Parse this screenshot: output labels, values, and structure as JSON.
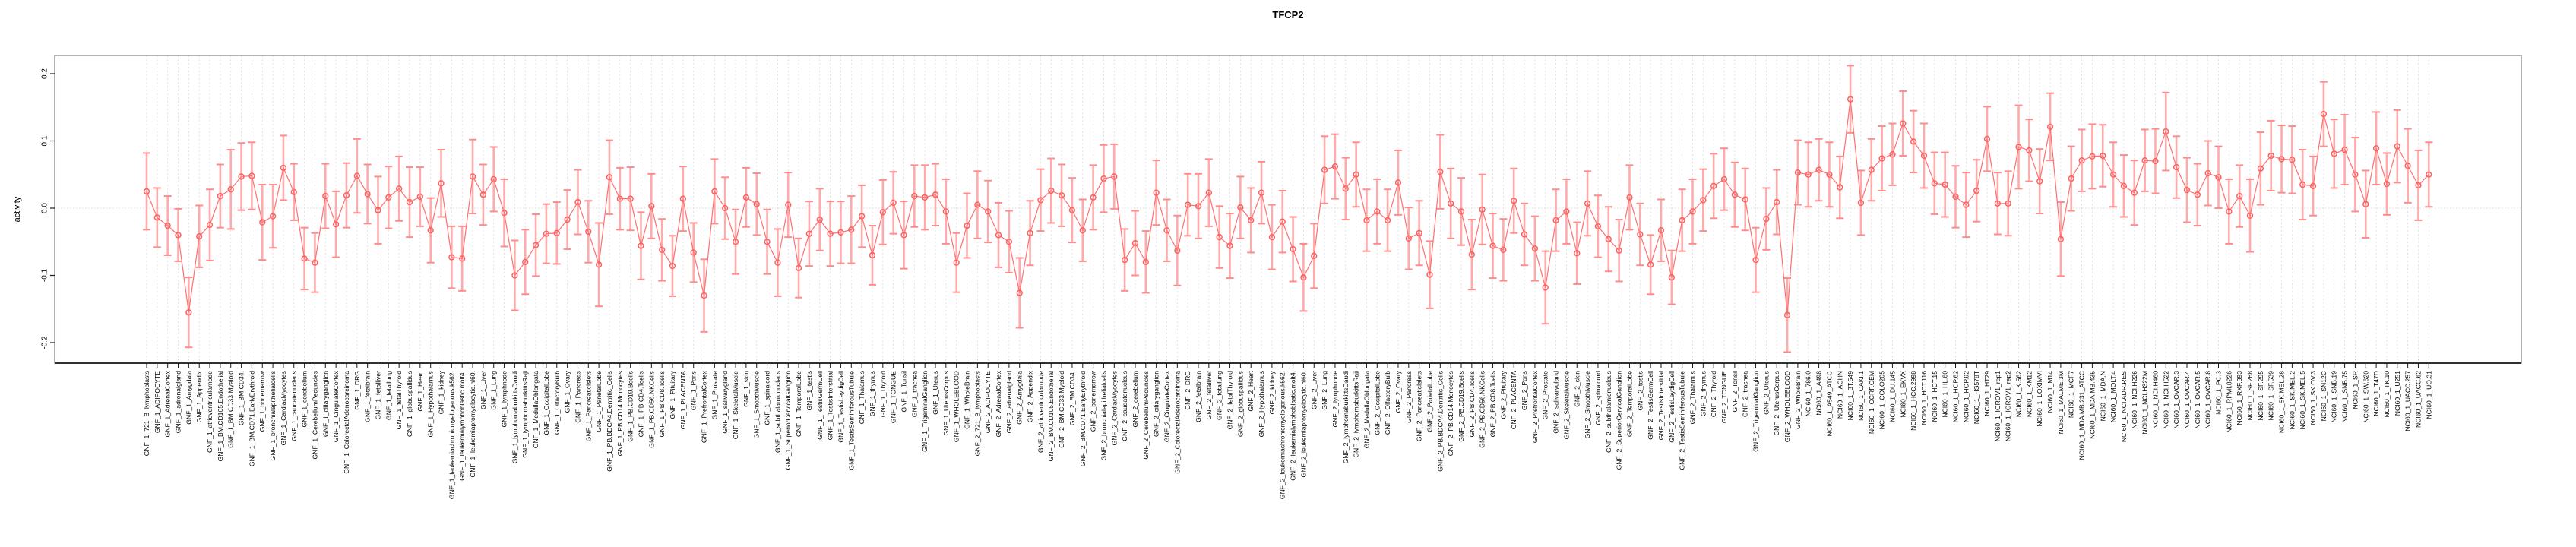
{
  "chart_data": {
    "type": "scatter",
    "title": "TFCP2",
    "xlabel": "",
    "ylabel": "activity",
    "ylim": [
      -0.23,
      0.23
    ],
    "y_ticks": [
      0.2,
      0.1,
      0.0,
      -0.1,
      -0.2
    ],
    "y_tick_labels": [
      "0.2",
      "0.1",
      "0.0",
      "-0.1",
      "-0.2"
    ],
    "grid": "vertical-dashed-per-category, dotted-zero-line",
    "legend": "none",
    "marker": "open-circle-with-errorbar",
    "colors": {
      "point": "#FF5F5F",
      "line": "#FF7070",
      "whisker": "#FFABAB",
      "whisker_cap": "#FF8C8C",
      "grid": "#DCDCDC",
      "zero_line": "#E3E3E3",
      "panel_border": "#9E9E9E",
      "axis": "#1A1A1A",
      "label_text": "#000000"
    },
    "groups": [
      {
        "prefix": "GNF_1_",
        "names": [
          "721_B_lymphoblasts",
          "ADIPOCYTE",
          "AdrenalCortex",
          "adrenalgland",
          "Amygdala",
          "Appendix",
          "atrioventricularnode",
          "BM.CD105.Endothelial",
          "BM.CD33.Myeloid",
          "BM.CD34.",
          "BM.CD71.EarlyErythroid",
          "bonemarrow",
          "bronchialepithelialcells",
          "CardiacMyocytes",
          "caudatenucleus",
          "cerebellum",
          "CerebellumPeduncles",
          "ciliaryganglion",
          "CingulateCortex",
          "ColorectalAdenocarcinoma",
          "DRG",
          "fetalbrain",
          "fetalliver",
          "fetallung",
          "fetalThyroid",
          "globuspallidus",
          "Heart",
          "Hypothalamus",
          "kidney",
          "leukemiachronicmyelogenous.k562.",
          "leukemialymphoblastic.molt4.",
          "leukemiapromyelocytic.hl60.",
          "Liver",
          "Lung",
          "lymphnode",
          "lymphomaburkittsDaudi",
          "lymphomaburkittsRaji",
          "MedullaOblongata",
          "OccipitalLobe",
          "OlfactoryBulb",
          "Ovary",
          "Pancreas",
          "PancreaticIslets",
          "ParietalLobe",
          "PB.BDCA4.Dentritic_Cells",
          "PB.CD14.Monocytes",
          "PB.CD19.Bcells",
          "PB.CD4.Tcells",
          "PB.CD56.NKCells",
          "PB.CD8.Tcells",
          "Pituitary",
          "PLACENTA",
          "Pons",
          "PrefrontalCortex",
          "Prostate",
          "salivarygland",
          "SkeletalMuscle",
          "skin",
          "SmoothMuscle",
          "spinalcord",
          "subthalamicnucleus",
          "SuperiorCervicalGanglion",
          "TemporalLobe",
          "testis",
          "TestisGermCell",
          "TestisInterstitial",
          "TestisLeydigCell",
          "TestisSeminiferousTubule",
          "Thalamus",
          "thymus",
          "Thyroid",
          "TONGUE",
          "Tonsil",
          "trachea",
          "TrigeminalGanglion",
          "Uterus",
          "UterusCorpus",
          "WHOLEBLOOD",
          "WholeBrain"
        ]
      },
      {
        "prefix": "GNF_2_",
        "names": [
          "721_B_lymphoblasts",
          "ADIPOCYTE",
          "AdrenalCortex",
          "adrenalgland",
          "Amygdala",
          "Appendix",
          "atrioventricularnode",
          "BM.CD105.Endothelial",
          "BM.CD33.Myeloid",
          "BM.CD34.",
          "BM.CD71.EarlyErythroid",
          "bonemarrow",
          "bronchialepithelialcells",
          "CardiacMyocytes",
          "caudatenucleus",
          "cerebellum",
          "CerebellumPeduncles",
          "ciliaryganglion",
          "CingulateCortex",
          "ColorectalAdenocarcinoma",
          "DRG",
          "fetalbrain",
          "fetalliver",
          "fetallung",
          "fetalThyroid",
          "globuspallidus",
          "Heart",
          "Hypothalamus",
          "kidney",
          "leukemiachronicmyelogenous.k562.",
          "leukemialymphoblastic.molt4.",
          "leukemiapromyelocytic.hl60.",
          "Liver",
          "Lung",
          "lymphnode",
          "lymphomaburkittsDaudi",
          "lymphomaburkittsRaji",
          "MedullaOblongata",
          "OccipitalLobe",
          "OlfactoryBulb",
          "Ovary",
          "Pancreas",
          "PancreaticIslets",
          "ParietalLobe",
          "PB.BDCA4.Dentritic_Cells",
          "PB.CD14.Monocytes",
          "PB.CD19.Bcells",
          "PB.CD4.Tcells",
          "PB.CD56.NKCells",
          "PB.CD8.Tcells",
          "Pituitary",
          "PLACENTA",
          "Pons",
          "PrefrontalCortex",
          "Prostate",
          "salivarygland",
          "SkeletalMuscle",
          "skin",
          "SmoothMuscle",
          "spinalcord",
          "subthalamicnucleus",
          "SuperiorCervicalGanglion",
          "TemporalLobe",
          "testis",
          "TestisGermCell",
          "TestisInterstitial",
          "TestisLeydigCell",
          "TestisSeminiferousTubule",
          "Thalamus",
          "thymus",
          "Thyroid",
          "TONGUE",
          "Tonsil",
          "trachea",
          "TrigeminalGanglion",
          "Uterus",
          "UterusCorpus",
          "WHOLEBLOOD",
          "WholeBrain"
        ]
      },
      {
        "prefix": "NCI60_1_",
        "names": [
          "786.0",
          "A498",
          "A549_ATCC",
          "ACHN",
          "BT.549",
          "CAKI.1",
          "CCRF.CEM",
          "COLO205",
          "DU.145",
          "EKVX",
          "HCC.2998",
          "HCT.116",
          "HCT.15",
          "HL.60",
          "HOP.62",
          "HOP.92",
          "HS578T",
          "HT29",
          "IGROV1_rep1",
          "IGROV1_rep2",
          "K.562",
          "KM12",
          "LOXIMVI",
          "M14",
          "MALME.3M",
          "MCF7",
          "MDA.MB.231_ATCC",
          "MDA.MB.435",
          "MDA.N",
          "MOLT.4",
          "NCI.ADR.RES",
          "NCI.H226",
          "NCI.H322M",
          "NCI.H460",
          "NCI.H522",
          "OVCAR.3",
          "OVCAR.4",
          "OVCAR.5",
          "OVCAR.8",
          "PC.3",
          "RPMI.8226",
          "RXF.393",
          "SF.268",
          "SF.295",
          "SF.539",
          "SK.MEL.28",
          "SK.MEL.2",
          "SK.MEL.5",
          "SK.OV.3",
          "SN12C",
          "SNB.19",
          "SNB.75",
          "SR",
          "SW.620",
          "T47D",
          "TK.10",
          "U251",
          "UACC.257",
          "UACC.62",
          "UO.31"
        ]
      }
    ],
    "points": [
      [
        0.025,
        0.057
      ],
      [
        -0.014,
        0.044
      ],
      [
        -0.026,
        0.044
      ],
      [
        -0.04,
        0.039
      ],
      [
        -0.155,
        0.052
      ],
      [
        -0.042,
        0.046
      ],
      [
        -0.025,
        0.053
      ],
      [
        0.018,
        0.047
      ],
      [
        0.028,
        0.059
      ],
      [
        0.047,
        0.05
      ],
      [
        0.048,
        0.05
      ],
      [
        -0.021,
        0.056
      ],
      [
        -0.012,
        0.047
      ],
      [
        0.06,
        0.048
      ],
      [
        0.024,
        0.042
      ],
      [
        -0.075,
        0.046
      ],
      [
        -0.081,
        0.044
      ],
      [
        0.018,
        0.048
      ],
      [
        -0.024,
        0.049
      ],
      [
        0.019,
        0.048
      ],
      [
        0.048,
        0.055
      ],
      [
        0.021,
        0.044
      ],
      [
        -0.003,
        0.05
      ],
      [
        0.016,
        0.046
      ],
      [
        0.029,
        0.048
      ],
      [
        0.009,
        0.052
      ],
      [
        0.017,
        0.044
      ],
      [
        -0.033,
        0.048
      ],
      [
        0.037,
        0.05
      ],
      [
        -0.073,
        0.046
      ],
      [
        -0.075,
        0.048
      ],
      [
        0.047,
        0.055
      ],
      [
        0.02,
        0.045
      ],
      [
        0.043,
        0.048
      ],
      [
        -0.007,
        0.05
      ],
      [
        -0.1,
        0.052
      ],
      [
        -0.08,
        0.048
      ],
      [
        -0.055,
        0.046
      ],
      [
        -0.038,
        0.044
      ],
      [
        -0.037,
        0.046
      ],
      [
        -0.017,
        0.044
      ],
      [
        0.009,
        0.048
      ],
      [
        -0.035,
        0.046
      ],
      [
        -0.084,
        0.062
      ],
      [
        0.046,
        0.055
      ],
      [
        0.014,
        0.046
      ],
      [
        0.014,
        0.047
      ],
      [
        -0.056,
        0.05
      ],
      [
        0.003,
        0.048
      ],
      [
        -0.062,
        0.046
      ],
      [
        -0.086,
        0.045
      ],
      [
        0.014,
        0.048
      ],
      [
        -0.066,
        0.044
      ],
      [
        -0.13,
        0.054
      ],
      [
        0.025,
        0.048
      ],
      [
        0.0,
        0.046
      ],
      [
        -0.05,
        0.048
      ],
      [
        0.016,
        0.044
      ],
      [
        0.006,
        0.046
      ],
      [
        -0.05,
        0.048
      ],
      [
        -0.081,
        0.05
      ],
      [
        0.005,
        0.048
      ],
      [
        -0.089,
        0.044
      ],
      [
        -0.038,
        0.048
      ],
      [
        -0.017,
        0.046
      ],
      [
        -0.038,
        0.048
      ],
      [
        -0.036,
        0.046
      ],
      [
        -0.032,
        0.05
      ],
      [
        -0.012,
        0.046
      ],
      [
        -0.07,
        0.044
      ],
      [
        -0.006,
        0.048
      ],
      [
        0.008,
        0.046
      ],
      [
        -0.04,
        0.05
      ],
      [
        0.018,
        0.046
      ],
      [
        0.016,
        0.048
      ],
      [
        0.02,
        0.046
      ],
      [
        -0.005,
        0.048
      ],
      [
        -0.081,
        0.044
      ],
      [
        -0.026,
        0.048
      ],
      [
        0.005,
        0.05
      ],
      [
        -0.005,
        0.046
      ],
      [
        -0.04,
        0.048
      ],
      [
        -0.05,
        0.046
      ],
      [
        -0.126,
        0.052
      ],
      [
        -0.037,
        0.048
      ],
      [
        0.012,
        0.046
      ],
      [
        0.026,
        0.048
      ],
      [
        0.019,
        0.046
      ],
      [
        -0.003,
        0.048
      ],
      [
        -0.033,
        0.046
      ],
      [
        0.016,
        0.048
      ],
      [
        0.044,
        0.05
      ],
      [
        0.047,
        0.048
      ],
      [
        -0.077,
        0.046
      ],
      [
        -0.052,
        0.048
      ],
      [
        -0.08,
        0.046
      ],
      [
        0.023,
        0.048
      ],
      [
        -0.033,
        0.046
      ],
      [
        -0.063,
        0.052
      ],
      [
        0.005,
        0.046
      ],
      [
        0.003,
        0.048
      ],
      [
        0.023,
        0.05
      ],
      [
        -0.043,
        0.046
      ],
      [
        -0.056,
        0.048
      ],
      [
        0.001,
        0.046
      ],
      [
        -0.018,
        0.048
      ],
      [
        0.023,
        0.046
      ],
      [
        -0.043,
        0.048
      ],
      [
        -0.02,
        0.046
      ],
      [
        -0.061,
        0.048
      ],
      [
        -0.103,
        0.05
      ],
      [
        -0.071,
        0.048
      ],
      [
        0.057,
        0.05
      ],
      [
        0.062,
        0.048
      ],
      [
        0.029,
        0.046
      ],
      [
        0.05,
        0.048
      ],
      [
        -0.018,
        0.046
      ],
      [
        -0.005,
        0.048
      ],
      [
        -0.018,
        0.046
      ],
      [
        0.038,
        0.048
      ],
      [
        -0.045,
        0.046
      ],
      [
        -0.037,
        0.048
      ],
      [
        -0.099,
        0.05
      ],
      [
        0.054,
        0.055
      ],
      [
        0.007,
        0.052
      ],
      [
        -0.005,
        0.05
      ],
      [
        -0.069,
        0.052
      ],
      [
        -0.002,
        0.052
      ],
      [
        -0.056,
        0.048
      ],
      [
        -0.062,
        0.046
      ],
      [
        0.011,
        0.048
      ],
      [
        -0.039,
        0.046
      ],
      [
        -0.06,
        0.048
      ],
      [
        -0.118,
        0.054
      ],
      [
        -0.018,
        0.046
      ],
      [
        -0.005,
        0.048
      ],
      [
        -0.067,
        0.046
      ],
      [
        0.007,
        0.048
      ],
      [
        -0.027,
        0.046
      ],
      [
        -0.046,
        0.048
      ],
      [
        -0.063,
        0.046
      ],
      [
        0.016,
        0.048
      ],
      [
        -0.039,
        0.046
      ],
      [
        -0.084,
        0.044
      ],
      [
        -0.033,
        0.046
      ],
      [
        -0.103,
        0.04
      ],
      [
        -0.018,
        0.046
      ],
      [
        -0.005,
        0.048
      ],
      [
        0.012,
        0.046
      ],
      [
        0.033,
        0.048
      ],
      [
        0.043,
        0.046
      ],
      [
        0.02,
        0.048
      ],
      [
        0.013,
        0.046
      ],
      [
        -0.077,
        0.048
      ],
      [
        -0.016,
        0.046
      ],
      [
        0.009,
        0.048
      ],
      [
        -0.159,
        0.055
      ],
      [
        0.053,
        0.048
      ],
      [
        0.05,
        0.048
      ],
      [
        0.057,
        0.046
      ],
      [
        0.05,
        0.048
      ],
      [
        0.031,
        0.046
      ],
      [
        0.162,
        0.05
      ],
      [
        0.008,
        0.048
      ],
      [
        0.057,
        0.046
      ],
      [
        0.074,
        0.048
      ],
      [
        0.08,
        0.046
      ],
      [
        0.126,
        0.048
      ],
      [
        0.099,
        0.046
      ],
      [
        0.078,
        0.048
      ],
      [
        0.037,
        0.046
      ],
      [
        0.035,
        0.048
      ],
      [
        0.017,
        0.046
      ],
      [
        0.005,
        0.048
      ],
      [
        0.026,
        0.046
      ],
      [
        0.103,
        0.048
      ],
      [
        0.007,
        0.046
      ],
      [
        0.007,
        0.048
      ],
      [
        0.091,
        0.062
      ],
      [
        0.086,
        0.046
      ],
      [
        0.04,
        0.048
      ],
      [
        0.121,
        0.05
      ],
      [
        -0.046,
        0.055
      ],
      [
        0.044,
        0.048
      ],
      [
        0.071,
        0.046
      ],
      [
        0.077,
        0.048
      ],
      [
        0.078,
        0.046
      ],
      [
        0.05,
        0.048
      ],
      [
        0.033,
        0.046
      ],
      [
        0.023,
        0.048
      ],
      [
        0.071,
        0.046
      ],
      [
        0.07,
        0.048
      ],
      [
        0.114,
        0.058
      ],
      [
        0.061,
        0.046
      ],
      [
        0.027,
        0.048
      ],
      [
        0.02,
        0.046
      ],
      [
        0.052,
        0.048
      ],
      [
        0.046,
        0.046
      ],
      [
        -0.005,
        0.048
      ],
      [
        0.018,
        0.046
      ],
      [
        -0.011,
        0.054
      ],
      [
        0.059,
        0.054
      ],
      [
        0.078,
        0.052
      ],
      [
        0.073,
        0.05
      ],
      [
        0.072,
        0.05
      ],
      [
        0.035,
        0.052
      ],
      [
        0.033,
        0.044
      ],
      [
        0.14,
        0.048
      ],
      [
        0.081,
        0.051
      ],
      [
        0.087,
        0.052
      ],
      [
        0.05,
        0.055
      ],
      [
        0.006,
        0.05
      ],
      [
        0.089,
        0.054
      ],
      [
        0.036,
        0.046
      ],
      [
        0.092,
        0.054
      ],
      [
        0.063,
        0.055
      ],
      [
        0.034,
        0.052
      ],
      [
        0.05,
        0.048
      ]
    ]
  }
}
